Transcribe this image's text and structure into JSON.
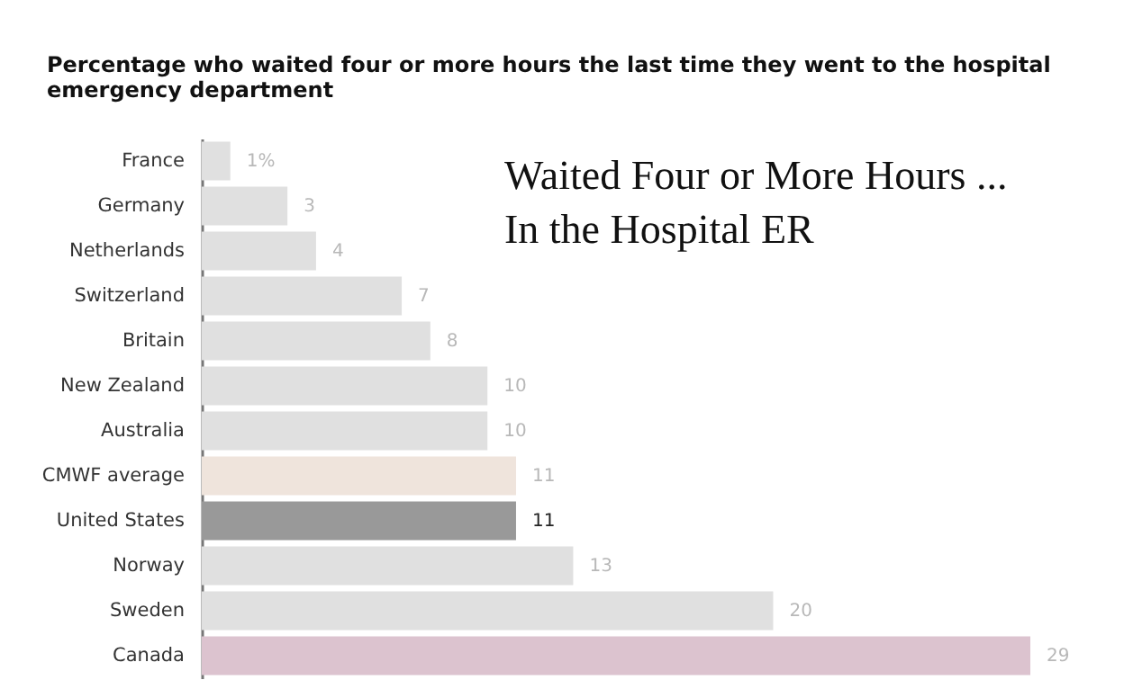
{
  "chart_data": {
    "type": "bar",
    "orientation": "horizontal",
    "title": "Percentage who waited four or more hours the last time they went to the hospital emergency department",
    "categories": [
      "France",
      "Germany",
      "Netherlands",
      "Switzerland",
      "Britain",
      "New Zealand",
      "Australia",
      "CMWF average",
      "United States",
      "Norway",
      "Sweden",
      "Canada"
    ],
    "values": [
      1,
      3,
      4,
      7,
      8,
      10,
      10,
      11,
      11,
      13,
      20,
      29
    ],
    "value_labels": [
      "1%",
      "3",
      "4",
      "7",
      "8",
      "10",
      "10",
      "11",
      "11",
      "13",
      "20",
      "29"
    ],
    "colors": [
      "#e0e0e0",
      "#e0e0e0",
      "#e0e0e0",
      "#e0e0e0",
      "#e0e0e0",
      "#e0e0e0",
      "#e0e0e0",
      "#efe4dc",
      "#999999",
      "#e0e0e0",
      "#e0e0e0",
      "#dcc3cf"
    ],
    "annotations": [
      "Waited Four or More Hours ...",
      "In the Hospital ER"
    ]
  }
}
